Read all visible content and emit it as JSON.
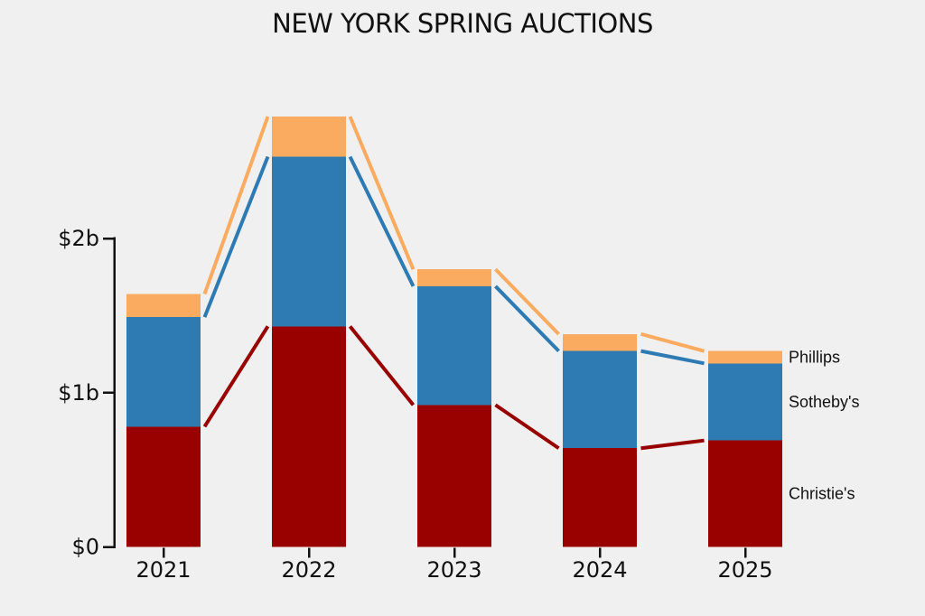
{
  "chart_data": {
    "type": "bar",
    "stacked": true,
    "title": "NEW YORK SPRING AUCTIONS",
    "unit": "billions of US dollars",
    "categories": [
      "2021",
      "2022",
      "2023",
      "2024",
      "2025"
    ],
    "series": [
      {
        "name": "Christie's",
        "color": "#990000",
        "values": [
          0.78,
          1.43,
          0.92,
          0.64,
          0.69
        ]
      },
      {
        "name": "Sotheby's",
        "color": "#2e7bb4",
        "values": [
          0.71,
          1.1,
          0.77,
          0.63,
          0.5
        ]
      },
      {
        "name": "Phillips",
        "color": "#fbab60",
        "values": [
          0.15,
          0.26,
          0.11,
          0.11,
          0.08
        ]
      }
    ],
    "totals": [
      1.64,
      2.79,
      1.8,
      1.38,
      1.27
    ],
    "yticks": [
      {
        "value": 0,
        "label": "$0"
      },
      {
        "value": 1,
        "label": "$1b"
      },
      {
        "value": 2,
        "label": "$2b"
      }
    ],
    "ylim": [
      0,
      2.85
    ],
    "grid": false,
    "connectors": true,
    "legend": {
      "position": "right-of-last-bar",
      "labels": [
        "Phillips",
        "Sotheby's",
        "Christie's"
      ]
    },
    "background_color": "#f0f0f0",
    "axis_color": "#111111",
    "text_color": "#111111"
  }
}
